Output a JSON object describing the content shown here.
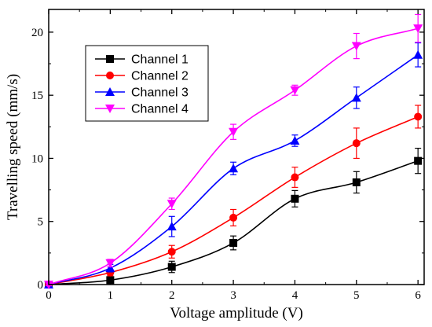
{
  "chart_data": {
    "type": "line",
    "xlabel": "Voltage amplitude (V)",
    "ylabel": "Travelling speed (mm/s)",
    "xlim": [
      0,
      6.1
    ],
    "ylim": [
      0,
      21.8
    ],
    "x_ticks": [
      "0",
      "1",
      "2",
      "3",
      "4",
      "5",
      "6"
    ],
    "y_ticks": [
      "0",
      "5",
      "10",
      "15",
      "20"
    ],
    "x_tick_values": [
      0,
      1,
      2,
      3,
      4,
      5,
      6
    ],
    "y_tick_values": [
      0,
      5,
      10,
      15,
      20
    ],
    "x": [
      0,
      1,
      2,
      3,
      4,
      5,
      6
    ],
    "grid": false,
    "legend_position": "upper-left",
    "series": [
      {
        "name": "Channel 1",
        "color": "#000000",
        "marker": "square",
        "values": [
          0,
          0.35,
          1.4,
          3.3,
          6.8,
          8.1,
          9.8
        ],
        "errors": [
          0.1,
          0.25,
          0.45,
          0.55,
          0.65,
          0.85,
          1.0
        ]
      },
      {
        "name": "Channel 2",
        "color": "#ff0000",
        "marker": "circle",
        "values": [
          0,
          0.95,
          2.6,
          5.3,
          8.5,
          11.2,
          13.3
        ],
        "errors": [
          0.1,
          0.25,
          0.5,
          0.65,
          0.8,
          1.2,
          0.9
        ]
      },
      {
        "name": "Channel 3",
        "color": "#0000ff",
        "marker": "triangle-up",
        "values": [
          0,
          1.3,
          4.6,
          9.2,
          11.4,
          14.8,
          18.2
        ],
        "errors": [
          0.1,
          0.3,
          0.8,
          0.5,
          0.45,
          0.85,
          0.95
        ]
      },
      {
        "name": "Channel 4",
        "color": "#ff00ff",
        "marker": "triangle-down",
        "values": [
          0,
          1.7,
          6.4,
          12.1,
          15.4,
          18.9,
          20.3
        ],
        "errors": [
          0.1,
          0.3,
          0.45,
          0.6,
          0.4,
          1.0,
          1.1
        ]
      }
    ]
  }
}
